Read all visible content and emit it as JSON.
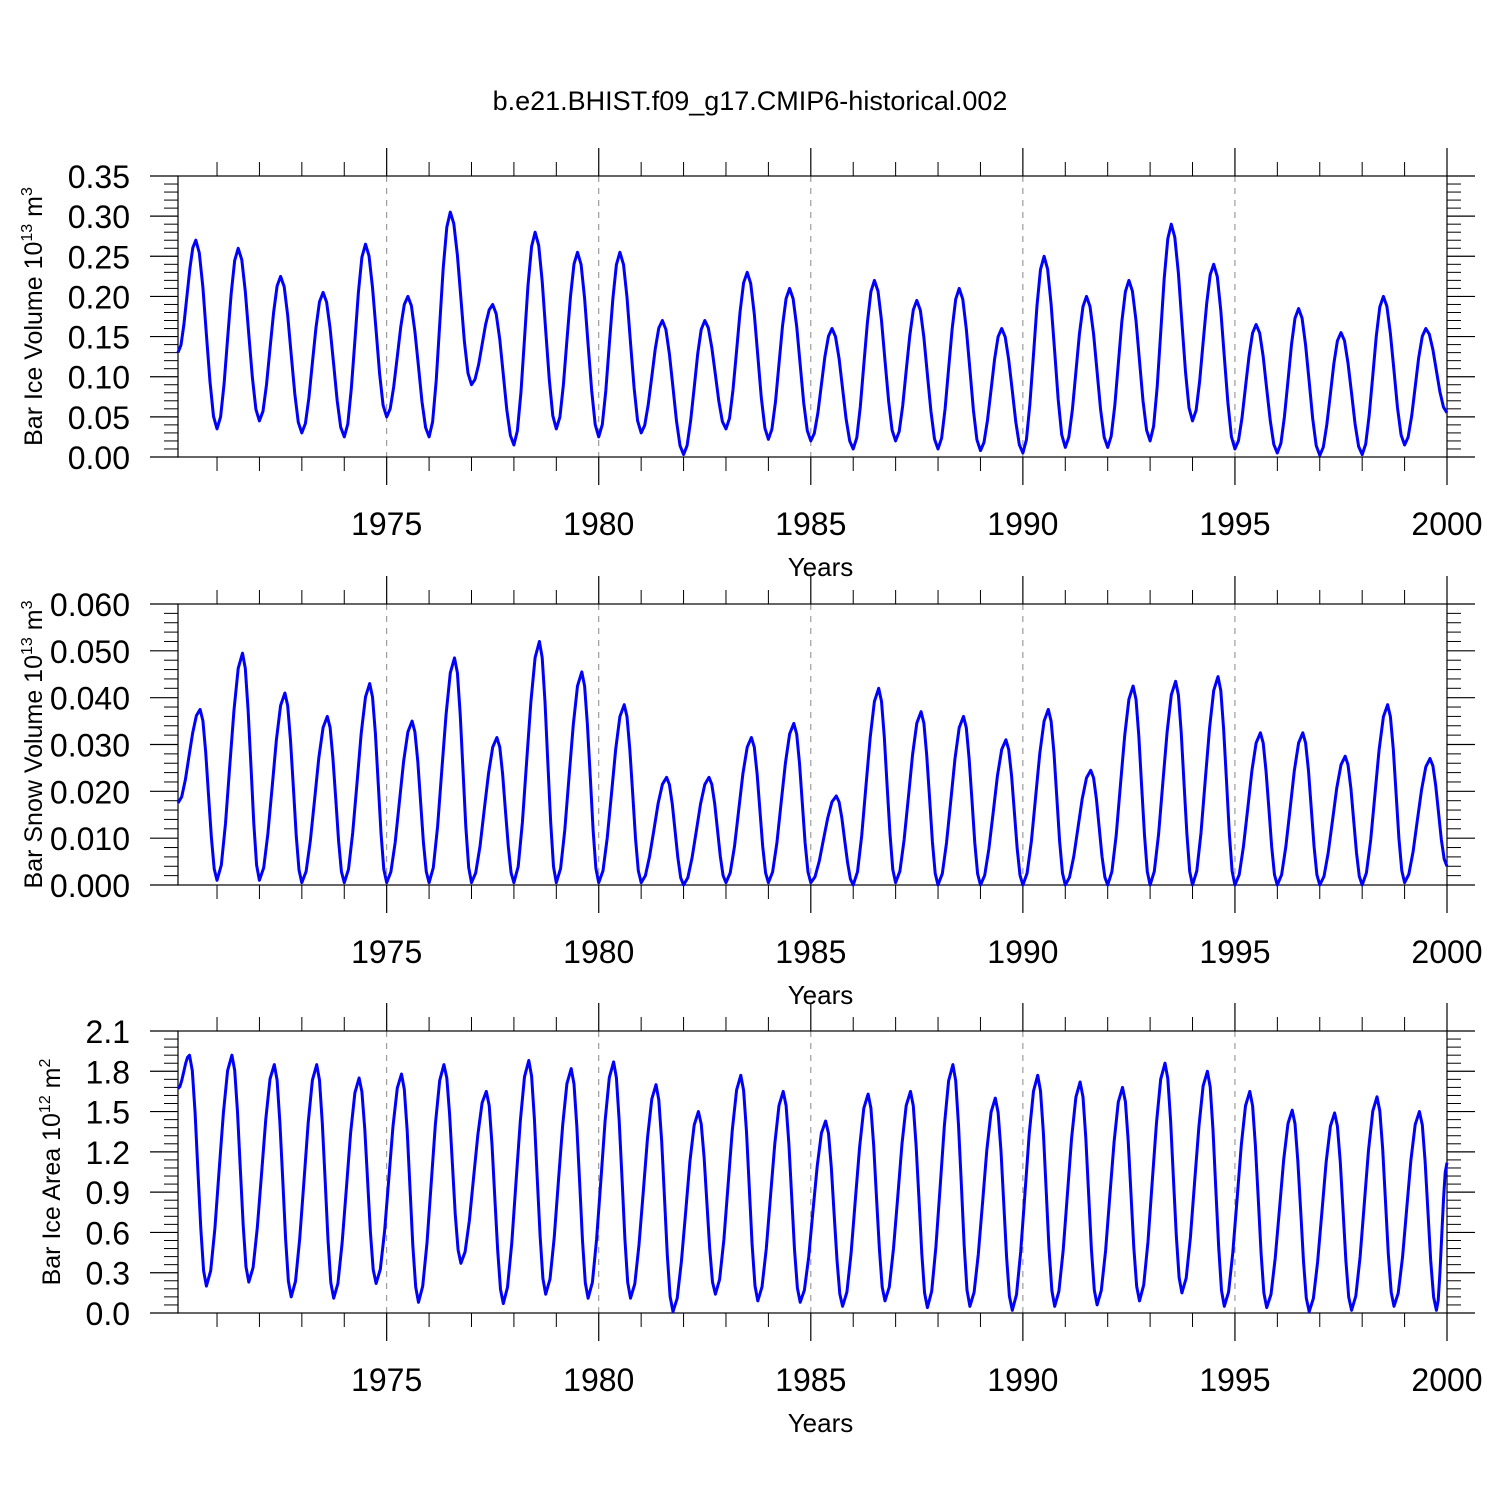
{
  "figure_title": "b.e21.BHIST.f09_g17.CMIP6-historical.002",
  "line_color": "#0000ff",
  "chart_data": [
    {
      "type": "line",
      "title": "b.e21.BHIST.f09_g17.CMIP6-historical.002",
      "xlabel": "Years",
      "ylabel": "Bar Ice Volume 10^13 m^3",
      "ylabel_parts": {
        "main": "Bar Ice Volume 10",
        "exp1": "13",
        "unit": " m",
        "exp2": "3"
      },
      "xlim": [
        1970.08,
        2000.0
      ],
      "ylim": [
        0.0,
        0.35
      ],
      "yticks": [
        "0.00",
        "0.05",
        "0.10",
        "0.15",
        "0.20",
        "0.25",
        "0.30",
        "0.35"
      ],
      "xticks": [
        "1975",
        "1980",
        "1985",
        "1990",
        "1995",
        "2000"
      ],
      "grid": "dashed vertical lines at 5-year marks",
      "series": [
        {
          "color": "#0000ff",
          "peaks": [
            [
              1970.5,
              0.27
            ],
            [
              1971.5,
              0.26
            ],
            [
              1972.5,
              0.225
            ],
            [
              1973.5,
              0.205
            ],
            [
              1974.5,
              0.265
            ],
            [
              1975.5,
              0.2
            ],
            [
              1976.5,
              0.305
            ],
            [
              1977.5,
              0.19
            ],
            [
              1978.5,
              0.28
            ],
            [
              1979.5,
              0.255
            ],
            [
              1980.5,
              0.255
            ],
            [
              1981.5,
              0.17
            ],
            [
              1982.5,
              0.17
            ],
            [
              1983.5,
              0.23
            ],
            [
              1984.5,
              0.21
            ],
            [
              1985.5,
              0.16
            ],
            [
              1986.5,
              0.22
            ],
            [
              1987.5,
              0.195
            ],
            [
              1988.5,
              0.21
            ],
            [
              1989.5,
              0.16
            ],
            [
              1990.5,
              0.25
            ],
            [
              1991.5,
              0.2
            ],
            [
              1992.5,
              0.22
            ],
            [
              1993.5,
              0.29
            ],
            [
              1994.5,
              0.24
            ],
            [
              1995.5,
              0.165
            ],
            [
              1996.5,
              0.185
            ],
            [
              1997.5,
              0.155
            ],
            [
              1998.5,
              0.2
            ],
            [
              1999.5,
              0.16
            ]
          ],
          "troughs": [
            [
              1971.0,
              0.035
            ],
            [
              1972.0,
              0.045
            ],
            [
              1973.0,
              0.03
            ],
            [
              1974.0,
              0.025
            ],
            [
              1975.0,
              0.05
            ],
            [
              1976.0,
              0.025
            ],
            [
              1977.0,
              0.09
            ],
            [
              1978.0,
              0.015
            ],
            [
              1979.0,
              0.035
            ],
            [
              1980.0,
              0.025
            ],
            [
              1981.0,
              0.03
            ],
            [
              1982.0,
              0.003
            ],
            [
              1983.0,
              0.035
            ],
            [
              1984.0,
              0.022
            ],
            [
              1985.0,
              0.02
            ],
            [
              1986.0,
              0.01
            ],
            [
              1987.0,
              0.02
            ],
            [
              1988.0,
              0.01
            ],
            [
              1989.0,
              0.008
            ],
            [
              1990.0,
              0.005
            ],
            [
              1991.0,
              0.012
            ],
            [
              1992.0,
              0.012
            ],
            [
              1993.0,
              0.02
            ],
            [
              1994.0,
              0.045
            ],
            [
              1995.0,
              0.01
            ],
            [
              1996.0,
              0.005
            ],
            [
              1997.0,
              0.002
            ],
            [
              1998.0,
              0.003
            ],
            [
              1999.0,
              0.015
            ],
            [
              2000.0,
              0.055
            ]
          ],
          "start": [
            1970.08,
            0.13
          ]
        }
      ]
    },
    {
      "type": "line",
      "xlabel": "Years",
      "ylabel": "Bar Snow Volume 10^13 m^3",
      "ylabel_parts": {
        "main": "Bar Snow Volume 10",
        "exp1": "13",
        "unit": " m",
        "exp2": "3"
      },
      "xlim": [
        1970.08,
        2000.0
      ],
      "ylim": [
        0.0,
        0.06
      ],
      "yticks": [
        "0.000",
        "0.010",
        "0.020",
        "0.030",
        "0.040",
        "0.050",
        "0.060"
      ],
      "xticks": [
        "1975",
        "1980",
        "1985",
        "1990",
        "1995",
        "2000"
      ],
      "grid": "dashed vertical lines at 5-year marks",
      "series": [
        {
          "color": "#0000ff",
          "peaks": [
            [
              1970.6,
              0.0375
            ],
            [
              1971.6,
              0.0495
            ],
            [
              1972.6,
              0.041
            ],
            [
              1973.6,
              0.036
            ],
            [
              1974.6,
              0.043
            ],
            [
              1975.6,
              0.035
            ],
            [
              1976.6,
              0.0485
            ],
            [
              1977.6,
              0.0315
            ],
            [
              1978.6,
              0.052
            ],
            [
              1979.6,
              0.0455
            ],
            [
              1980.6,
              0.0385
            ],
            [
              1981.6,
              0.023
            ],
            [
              1982.6,
              0.023
            ],
            [
              1983.6,
              0.0315
            ],
            [
              1984.6,
              0.0345
            ],
            [
              1985.6,
              0.019
            ],
            [
              1986.6,
              0.042
            ],
            [
              1987.6,
              0.037
            ],
            [
              1988.6,
              0.036
            ],
            [
              1989.6,
              0.031
            ],
            [
              1990.6,
              0.0375
            ],
            [
              1991.6,
              0.0245
            ],
            [
              1992.6,
              0.0425
            ],
            [
              1993.6,
              0.0435
            ],
            [
              1994.6,
              0.0445
            ],
            [
              1995.6,
              0.0325
            ],
            [
              1996.6,
              0.0325
            ],
            [
              1997.6,
              0.0275
            ],
            [
              1998.6,
              0.0385
            ],
            [
              1999.6,
              0.027
            ]
          ],
          "troughs": [
            [
              1971.0,
              0.001
            ],
            [
              1972.0,
              0.001
            ],
            [
              1973.0,
              0.0005
            ],
            [
              1974.0,
              0.0005
            ],
            [
              1975.0,
              0.0005
            ],
            [
              1976.0,
              0.0005
            ],
            [
              1977.0,
              0.0005
            ],
            [
              1978.0,
              0.0005
            ],
            [
              1979.0,
              0.0005
            ],
            [
              1980.0,
              0.0005
            ],
            [
              1981.0,
              0.0005
            ],
            [
              1982.0,
              0.0
            ],
            [
              1983.0,
              0.0005
            ],
            [
              1984.0,
              0.0005
            ],
            [
              1985.0,
              0.0005
            ],
            [
              1986.0,
              0.0
            ],
            [
              1987.0,
              0.0005
            ],
            [
              1988.0,
              0.0
            ],
            [
              1989.0,
              0.0
            ],
            [
              1990.0,
              0.0
            ],
            [
              1991.0,
              0.0
            ],
            [
              1992.0,
              0.0
            ],
            [
              1993.0,
              0.0
            ],
            [
              1994.0,
              0.0
            ],
            [
              1995.0,
              0.0
            ],
            [
              1996.0,
              0.0
            ],
            [
              1997.0,
              0.0
            ],
            [
              1998.0,
              0.0
            ],
            [
              1999.0,
              0.0005
            ],
            [
              2000.0,
              0.004
            ]
          ],
          "start": [
            1970.08,
            0.0175
          ]
        }
      ]
    },
    {
      "type": "line",
      "xlabel": "Years",
      "ylabel": "Bar Ice Area 10^12 m^2",
      "ylabel_parts": {
        "main": "Bar Ice Area 10",
        "exp1": "12",
        "unit": " m",
        "exp2": "2"
      },
      "xlim": [
        1970.08,
        2000.0
      ],
      "ylim": [
        0.0,
        2.1
      ],
      "yticks": [
        "0.0",
        "0.3",
        "0.6",
        "0.9",
        "1.2",
        "1.5",
        "1.8",
        "2.1"
      ],
      "xticks": [
        "1975",
        "1980",
        "1985",
        "1990",
        "1995",
        "2000"
      ],
      "grid": "dashed vertical lines at 5-year marks",
      "series": [
        {
          "color": "#0000ff",
          "peaks": [
            [
              1970.35,
              1.92
            ],
            [
              1971.35,
              1.92
            ],
            [
              1972.35,
              1.85
            ],
            [
              1973.35,
              1.85
            ],
            [
              1974.35,
              1.75
            ],
            [
              1975.35,
              1.78
            ],
            [
              1976.35,
              1.85
            ],
            [
              1977.35,
              1.65
            ],
            [
              1978.35,
              1.88
            ],
            [
              1979.35,
              1.82
            ],
            [
              1980.35,
              1.87
            ],
            [
              1981.35,
              1.7
            ],
            [
              1982.35,
              1.5
            ],
            [
              1983.35,
              1.77
            ],
            [
              1984.35,
              1.65
            ],
            [
              1985.35,
              1.43
            ],
            [
              1986.35,
              1.63
            ],
            [
              1987.35,
              1.65
            ],
            [
              1988.35,
              1.85
            ],
            [
              1989.35,
              1.6
            ],
            [
              1990.35,
              1.77
            ],
            [
              1991.35,
              1.72
            ],
            [
              1992.35,
              1.68
            ],
            [
              1993.35,
              1.86
            ],
            [
              1994.35,
              1.8
            ],
            [
              1995.35,
              1.65
            ],
            [
              1996.35,
              1.51
            ],
            [
              1997.35,
              1.49
            ],
            [
              1998.35,
              1.61
            ],
            [
              1999.35,
              1.5
            ]
          ],
          "troughs": [
            [
              1970.75,
              0.2
            ],
            [
              1971.75,
              0.23
            ],
            [
              1972.75,
              0.12
            ],
            [
              1973.75,
              0.11
            ],
            [
              1974.75,
              0.22
            ],
            [
              1975.75,
              0.08
            ],
            [
              1976.75,
              0.37
            ],
            [
              1977.75,
              0.07
            ],
            [
              1978.75,
              0.14
            ],
            [
              1979.75,
              0.11
            ],
            [
              1980.75,
              0.11
            ],
            [
              1981.75,
              0.01
            ],
            [
              1982.75,
              0.14
            ],
            [
              1983.75,
              0.09
            ],
            [
              1984.75,
              0.08
            ],
            [
              1985.75,
              0.05
            ],
            [
              1986.75,
              0.09
            ],
            [
              1987.75,
              0.04
            ],
            [
              1988.75,
              0.05
            ],
            [
              1989.75,
              0.02
            ],
            [
              1990.75,
              0.05
            ],
            [
              1991.75,
              0.06
            ],
            [
              1992.75,
              0.09
            ],
            [
              1993.75,
              0.15
            ],
            [
              1994.75,
              0.05
            ],
            [
              1995.75,
              0.04
            ],
            [
              1996.75,
              0.01
            ],
            [
              1997.75,
              0.02
            ],
            [
              1998.75,
              0.05
            ],
            [
              1999.75,
              0.02
            ]
          ],
          "start": [
            1970.08,
            1.67
          ],
          "end": [
            2000.0,
            1.12
          ]
        }
      ]
    }
  ]
}
